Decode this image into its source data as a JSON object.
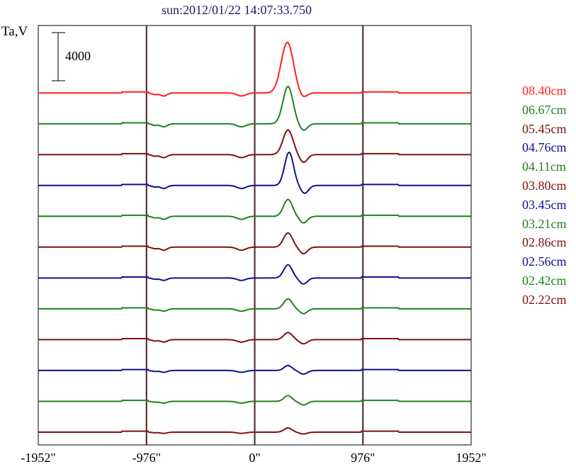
{
  "chart_data": {
    "type": "line",
    "title": "sun:2012/01/22 14:07:33.750",
    "ylabel": "Ta,V",
    "xlabel": "",
    "xlim": [
      -1952,
      1952
    ],
    "ylim": [
      0,
      34820
    ],
    "x_ticks": [
      {
        "value": -1952,
        "label": "-1952\""
      },
      {
        "value": -976,
        "label": "-976\""
      },
      {
        "value": 0,
        "label": "0\""
      },
      {
        "value": 976,
        "label": "976\""
      },
      {
        "value": 1952,
        "label": "1952\""
      }
    ],
    "vertical_lines": [
      -976,
      0,
      976
    ],
    "scale_bar": {
      "value": 4000,
      "label": "4000"
    },
    "series_offset_step": 2560,
    "series_base_offset": 1060,
    "series": [
      {
        "name": "08.40cm",
        "color": "#ff2020",
        "peak_x": 294,
        "peak_amp": 4200,
        "peak_sigma": 55,
        "neg_amp": 400,
        "dip_amp": 250
      },
      {
        "name": "06.67cm",
        "color": "#208020",
        "peak_x": 300,
        "peak_amp": 3100,
        "peak_sigma": 45,
        "neg_amp": 550,
        "dip_amp": 250
      },
      {
        "name": "05.45cm",
        "color": "#801010",
        "peak_x": 300,
        "peak_amp": 2050,
        "peak_sigma": 45,
        "neg_amp": 650,
        "dip_amp": 250
      },
      {
        "name": "04.76cm",
        "color": "#101090",
        "peak_x": 310,
        "peak_amp": 2750,
        "peak_sigma": 40,
        "neg_amp": 650,
        "dip_amp": 250
      },
      {
        "name": "04.11cm",
        "color": "#208020",
        "peak_x": 300,
        "peak_amp": 1400,
        "peak_sigma": 40,
        "neg_amp": 550,
        "dip_amp": 250
      },
      {
        "name": "03.80cm",
        "color": "#801010",
        "peak_x": 300,
        "peak_amp": 1180,
        "peak_sigma": 40,
        "neg_amp": 550,
        "dip_amp": 250
      },
      {
        "name": "03.45cm",
        "color": "#101090",
        "peak_x": 300,
        "peak_amp": 1100,
        "peak_sigma": 38,
        "neg_amp": 500,
        "dip_amp": 200
      },
      {
        "name": "03.21cm",
        "color": "#208020",
        "peak_x": 300,
        "peak_amp": 820,
        "peak_sigma": 38,
        "neg_amp": 400,
        "dip_amp": 200
      },
      {
        "name": "02.86cm",
        "color": "#801010",
        "peak_x": 300,
        "peak_amp": 590,
        "peak_sigma": 38,
        "neg_amp": 350,
        "dip_amp": 200
      },
      {
        "name": "02.56cm",
        "color": "#101090",
        "peak_x": 300,
        "peak_amp": 410,
        "peak_sigma": 35,
        "neg_amp": 300,
        "dip_amp": 150
      },
      {
        "name": "02.42cm",
        "color": "#208020",
        "peak_x": 300,
        "peak_amp": 470,
        "peak_sigma": 35,
        "neg_amp": 300,
        "dip_amp": 150
      },
      {
        "name": "02.22cm",
        "color": "#801010",
        "peak_x": 300,
        "peak_amp": 350,
        "peak_sigma": 35,
        "neg_amp": 150,
        "dip_amp": 100
      }
    ]
  }
}
